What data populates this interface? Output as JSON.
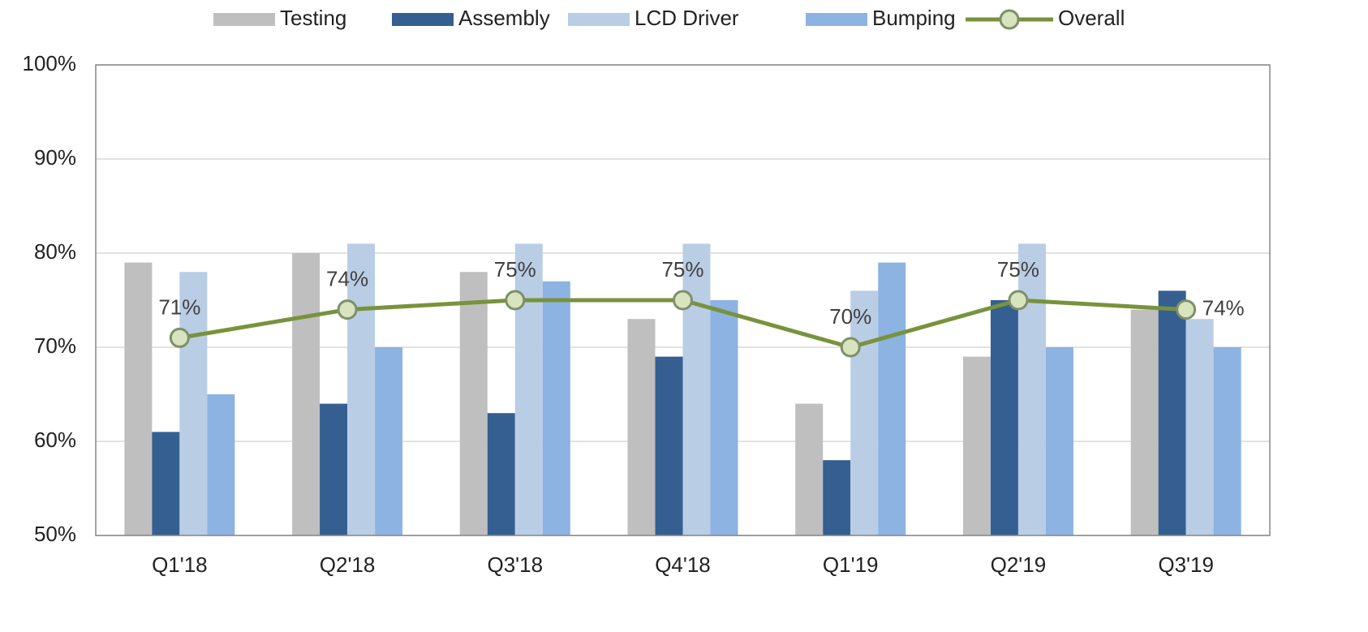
{
  "chart_data": {
    "type": "bar",
    "categories": [
      "Q1'18",
      "Q2'18",
      "Q3'18",
      "Q4'18",
      "Q1'19",
      "Q2'19",
      "Q3'19"
    ],
    "series": [
      {
        "name": "Testing",
        "type": "bar",
        "color": "#bfbfbf",
        "values": [
          79,
          80,
          78,
          73,
          64,
          69,
          74
        ]
      },
      {
        "name": "Assembly",
        "type": "bar",
        "color": "#355f91",
        "values": [
          61,
          64,
          63,
          69,
          58,
          75,
          76
        ]
      },
      {
        "name": "LCD Driver",
        "type": "bar",
        "color": "#b9cde5",
        "values": [
          78,
          81,
          81,
          81,
          76,
          81,
          73
        ]
      },
      {
        "name": "Bumping",
        "type": "bar",
        "color": "#8db3e2",
        "values": [
          65,
          70,
          77,
          75,
          79,
          70,
          70
        ]
      },
      {
        "name": "Overall",
        "type": "line",
        "color": "#77933c",
        "marker_color": "#d7e4bd",
        "values": [
          71,
          74,
          75,
          75,
          70,
          75,
          74
        ],
        "value_labels": [
          "71%",
          "74%",
          "75%",
          "75%",
          "70%",
          "75%",
          "74%"
        ]
      }
    ],
    "ylim": [
      50,
      100
    ],
    "yticks": [
      {
        "value": 50,
        "label": "50%"
      },
      {
        "value": 60,
        "label": "60%"
      },
      {
        "value": 70,
        "label": "70%"
      },
      {
        "value": 80,
        "label": "80%"
      },
      {
        "value": 90,
        "label": "90%"
      },
      {
        "value": 100,
        "label": "100%"
      }
    ],
    "grid": true,
    "legend": "top"
  }
}
